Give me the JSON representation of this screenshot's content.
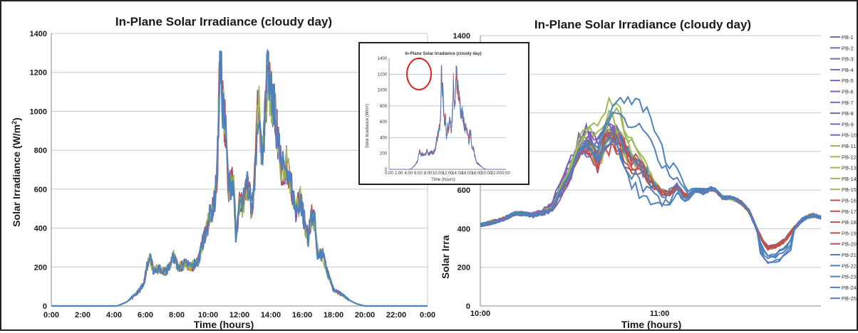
{
  "chart_data": [
    {
      "id": "left",
      "type": "line",
      "title": "In-Plane Solar Irradiance (cloudy day)",
      "xlabel": "Time (hours)",
      "ylabel": "Solar Irradiance (W/m²)",
      "ylabel_main": "Solar Irradiance (W/m",
      "ylabel_sup": "2",
      "ylabel_end": ")",
      "x_tick_labels": [
        "0:00",
        "2:00",
        "4:00",
        "6:00",
        "8:00",
        "10:00",
        "12:00",
        "14:00",
        "16:00",
        "18:00",
        "20:00",
        "22:00",
        "0:00"
      ],
      "xlim": [
        0,
        24
      ],
      "ylim": [
        0,
        1400
      ],
      "y_ticks": [
        0,
        200,
        400,
        600,
        800,
        1000,
        1200,
        1400
      ],
      "grid": "horizontal",
      "envelope": [
        [
          0,
          0
        ],
        [
          4.2,
          0
        ],
        [
          4.8,
          20
        ],
        [
          5.4,
          60
        ],
        [
          5.9,
          110
        ],
        [
          6.1,
          200
        ],
        [
          6.3,
          240
        ],
        [
          6.5,
          180
        ],
        [
          6.9,
          190
        ],
        [
          7.3,
          170
        ],
        [
          7.6,
          210
        ],
        [
          7.8,
          250
        ],
        [
          8.1,
          190
        ],
        [
          8.5,
          210
        ],
        [
          9.0,
          200
        ],
        [
          9.4,
          230
        ],
        [
          9.8,
          370
        ],
        [
          10.1,
          450
        ],
        [
          10.4,
          520
        ],
        [
          10.6,
          700
        ],
        [
          10.75,
          1280
        ],
        [
          10.9,
          1050
        ],
        [
          11.1,
          900
        ],
        [
          11.3,
          600
        ],
        [
          11.6,
          640
        ],
        [
          11.8,
          320
        ],
        [
          12.0,
          520
        ],
        [
          12.2,
          500
        ],
        [
          12.5,
          620
        ],
        [
          12.8,
          480
        ],
        [
          13.0,
          700
        ],
        [
          13.2,
          1050
        ],
        [
          13.4,
          760
        ],
        [
          13.6,
          900
        ],
        [
          13.8,
          1200
        ],
        [
          14.0,
          1050
        ],
        [
          14.2,
          1000
        ],
        [
          14.4,
          880
        ],
        [
          14.7,
          680
        ],
        [
          15.0,
          720
        ],
        [
          15.3,
          600
        ],
        [
          15.6,
          480
        ],
        [
          15.9,
          540
        ],
        [
          16.1,
          440
        ],
        [
          16.4,
          340
        ],
        [
          16.6,
          480
        ],
        [
          16.8,
          420
        ],
        [
          17.0,
          250
        ],
        [
          17.3,
          260
        ],
        [
          17.6,
          170
        ],
        [
          18.0,
          80
        ],
        [
          18.5,
          60
        ],
        [
          19.0,
          30
        ],
        [
          19.5,
          10
        ],
        [
          20.0,
          0
        ],
        [
          24,
          0
        ]
      ],
      "series_colors": [
        "#7a5aa6",
        "#c0504d",
        "#9bbb59",
        "#4f81bd"
      ]
    },
    {
      "id": "right",
      "type": "line",
      "title": "In-Plane Solar Irradiance (cloudy day)",
      "xlabel": "Time (hours)",
      "ylabel_visible": "Solar Irra",
      "x_tick_labels": [
        "10:00",
        "11:00"
      ],
      "x_tick_positions": [
        10.0,
        11.0
      ],
      "xlim": [
        10.0,
        11.9
      ],
      "ylim": [
        0,
        1400
      ],
      "y_ticks": [
        0,
        200,
        400,
        600,
        1400
      ],
      "grid": "horizontal",
      "legend_position": "right",
      "series": [
        {
          "name": "PB-1",
          "color": "#7f63b8"
        },
        {
          "name": "PB-2",
          "color": "#7f63b8"
        },
        {
          "name": "PB-3",
          "color": "#7f63b8"
        },
        {
          "name": "PB-4",
          "color": "#7f63b8"
        },
        {
          "name": "PB-5",
          "color": "#7f63b8"
        },
        {
          "name": "PB-6",
          "color": "#7f63b8"
        },
        {
          "name": "PB-7",
          "color": "#7f63b8"
        },
        {
          "name": "PB-8",
          "color": "#7f63b8"
        },
        {
          "name": "PB-9",
          "color": "#7f63b8"
        },
        {
          "name": "PB-10",
          "color": "#7f63b8"
        },
        {
          "name": "PB-11",
          "color": "#9bbb59"
        },
        {
          "name": "PB-12",
          "color": "#9bbb59"
        },
        {
          "name": "PB-13",
          "color": "#9bbb59"
        },
        {
          "name": "PB-14",
          "color": "#9bbb59"
        },
        {
          "name": "PB-15",
          "color": "#9bbb59"
        },
        {
          "name": "PB-16",
          "color": "#c0504d"
        },
        {
          "name": "PB-17",
          "color": "#c0504d"
        },
        {
          "name": "PB-18",
          "color": "#c0504d"
        },
        {
          "name": "PB-19",
          "color": "#c0504d"
        },
        {
          "name": "PB-20",
          "color": "#c0504d"
        },
        {
          "name": "PB-21",
          "color": "#4f81bd"
        },
        {
          "name": "PB-22",
          "color": "#4f81bd"
        },
        {
          "name": "PB-23",
          "color": "#4f81bd"
        },
        {
          "name": "PB-24",
          "color": "#4f81bd"
        },
        {
          "name": "PB-25",
          "color": "#4f81bd"
        }
      ],
      "envelope": [
        [
          10.0,
          420
        ],
        [
          10.1,
          440
        ],
        [
          10.2,
          480
        ],
        [
          10.3,
          470
        ],
        [
          10.4,
          500
        ],
        [
          10.45,
          600
        ],
        [
          10.5,
          680
        ],
        [
          10.55,
          800
        ],
        [
          10.6,
          850
        ],
        [
          10.65,
          760
        ],
        [
          10.7,
          870
        ],
        [
          10.75,
          900
        ],
        [
          10.8,
          820
        ],
        [
          10.85,
          760
        ],
        [
          10.9,
          720
        ],
        [
          10.95,
          650
        ],
        [
          11.0,
          600
        ],
        [
          11.05,
          580
        ],
        [
          11.1,
          620
        ],
        [
          11.15,
          560
        ],
        [
          11.2,
          600
        ],
        [
          11.25,
          590
        ],
        [
          11.3,
          610
        ],
        [
          11.35,
          560
        ],
        [
          11.4,
          560
        ],
        [
          11.45,
          540
        ],
        [
          11.5,
          490
        ],
        [
          11.55,
          380
        ],
        [
          11.6,
          300
        ],
        [
          11.65,
          310
        ],
        [
          11.7,
          340
        ],
        [
          11.75,
          400
        ],
        [
          11.8,
          450
        ],
        [
          11.85,
          470
        ],
        [
          11.9,
          460
        ]
      ],
      "group_offsets": {
        "purple": [
          0,
          60,
          -30,
          80,
          20
        ],
        "green": [
          0,
          120,
          -40,
          160,
          60
        ],
        "red": [
          0,
          -30,
          -60,
          20,
          -80
        ],
        "blue": [
          0,
          200,
          -90,
          320,
          -130
        ]
      }
    }
  ],
  "inset": {
    "title": "In-Plane Solar Irradiance (cloudy day)",
    "ylabel": "Solar Irradiance (W/m²)",
    "xlabel": "Time (hours)",
    "y_tick_labels": [
      "0",
      "200",
      "400",
      "600",
      "800",
      "1000",
      "1200",
      "1400"
    ],
    "x_tick_labels": [
      "0:00",
      "2:00",
      "4:00",
      "6:00",
      "8:00",
      "10:00",
      "12:00",
      "14:00",
      "16:00",
      "18:00",
      "20:00",
      "22:00",
      "0:00"
    ],
    "highlight": "red circle around peak"
  }
}
